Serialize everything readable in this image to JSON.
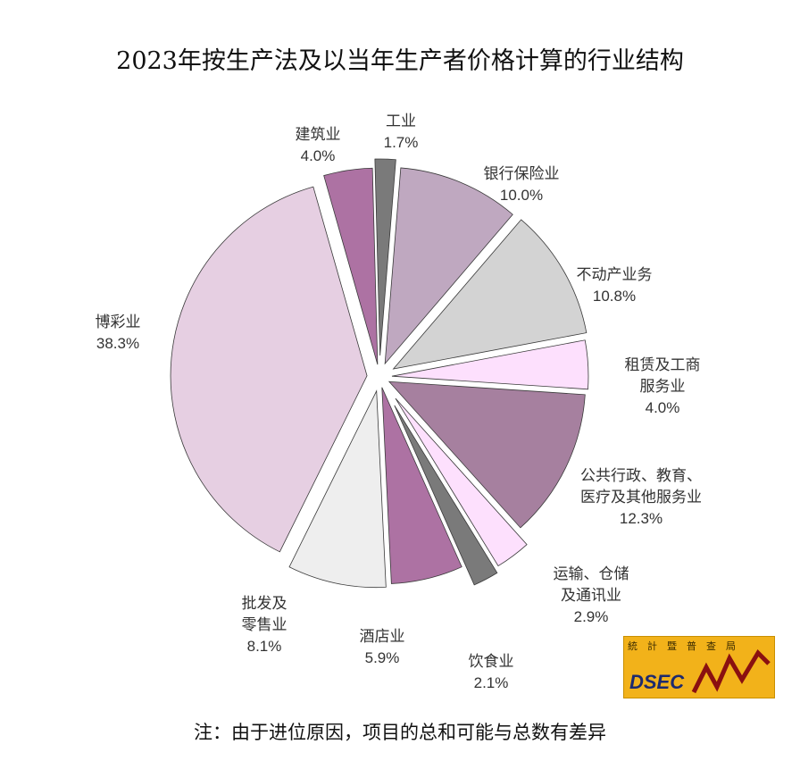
{
  "title": "2023年按生产法及以当年生产者价格计算的行业结构",
  "note": "注：由于进位原因，项目的总和可能与总数有差异",
  "logo": {
    "org": "統計暨普查局",
    "word": "DSEC"
  },
  "colors": {
    "dark_gray": "#7a7a7a",
    "mauve": "#bfa8c0",
    "light_gray": "#d3d3d3",
    "light_pink": "#fde0fd",
    "purple_gray": "#a6809f",
    "magenta": "#ad72a3",
    "pale_gray": "#eeeeee",
    "pale_lilac": "#e6cfe2",
    "logo_bg": "#f2b21a"
  },
  "chart_data": {
    "type": "pie",
    "title": "2023年按生产法及以当年生产者价格计算的行业结构",
    "unit": "%",
    "slices": [
      {
        "label_lines": [
          "工业"
        ],
        "value": 1.7,
        "display": "1.7%",
        "color": "#7a7a7a"
      },
      {
        "label_lines": [
          "银行保险业"
        ],
        "value": 10.0,
        "display": "10.0%",
        "color": "#bfa8c0"
      },
      {
        "label_lines": [
          "不动产业务"
        ],
        "value": 10.8,
        "display": "10.8%",
        "color": "#d3d3d3"
      },
      {
        "label_lines": [
          "租赁及工商",
          "服务业"
        ],
        "value": 4.0,
        "display": "4.0%",
        "color": "#fde0fd"
      },
      {
        "label_lines": [
          "公共行政、教育、",
          "医疗及其他服务业"
        ],
        "value": 12.3,
        "display": "12.3%",
        "color": "#a6809f"
      },
      {
        "label_lines": [
          "运输、仓储",
          "及通讯业"
        ],
        "value": 2.9,
        "display": "2.9%",
        "color": "#fde0fd"
      },
      {
        "label_lines": [
          "饮食业"
        ],
        "value": 2.1,
        "display": "2.1%",
        "color": "#7a7a7a"
      },
      {
        "label_lines": [
          "酒店业"
        ],
        "value": 5.9,
        "display": "5.9%",
        "color": "#ad72a3"
      },
      {
        "label_lines": [
          "批发及",
          "零售业"
        ],
        "value": 8.1,
        "display": "8.1%",
        "color": "#eeeeee"
      },
      {
        "label_lines": [
          "博彩业"
        ],
        "value": 38.3,
        "display": "38.3%",
        "color": "#e6cfe2"
      },
      {
        "label_lines": [
          "建筑业"
        ],
        "value": 4.0,
        "display": "4.0%",
        "color": "#ad72a3"
      }
    ]
  }
}
